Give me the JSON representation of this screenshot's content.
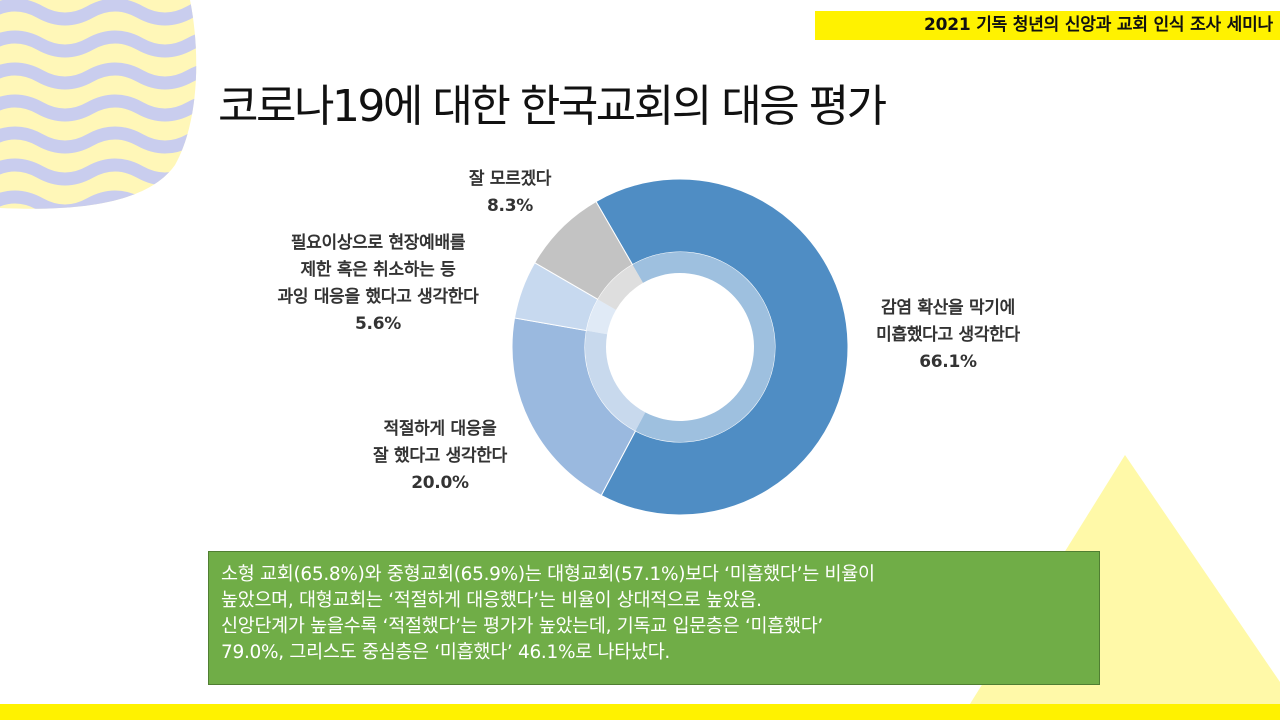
{
  "header": {
    "text": "2021 기독 청년의 신앙과 교회 인식 조사 세미나"
  },
  "title": "코로나19에 대한 한국교회의 대응 평가",
  "chart_data": {
    "type": "pie",
    "labels": [
      "감염 확산을 막기에 미흡했다고 생각한다",
      "적절하게 대응을 잘 했다고 생각한다",
      "필요이상으로 현장예배를 제한 혹은 취소하는 등 과잉 대응을 했다고 생각한다",
      "잘 모르겠다"
    ],
    "values": [
      66.1,
      20.0,
      5.6,
      8.3
    ],
    "value_labels": [
      "66.1%",
      "20.0%",
      "5.6%",
      "8.3%"
    ],
    "colors": [
      "#4f8dc4",
      "#9ab9df",
      "#c7d9ef",
      "#c3c3c3"
    ],
    "label_lines": [
      [
        "감염 확산을 막기에",
        "미흡했다고 생각한다"
      ],
      [
        "적절하게 대응을",
        "잘 했다고 생각한다"
      ],
      [
        "필요이상으로 현장예배를",
        "제한 혹은 취소하는 등",
        "과잉 대응을 했다고 생각한다"
      ],
      [
        "잘 모르겠다"
      ]
    ],
    "start_direction": "counterclockwise from top-right of vertical"
  },
  "note": {
    "lines": [
      "소형 교회(65.8%)와 중형교회(65.9%)는 대형교회(57.1%)보다 ‘미흡했다’는 비율이",
      "높았으며, 대형교회는 ‘적절하게 대응했다’는 비율이 상대적으로 높았음.",
      "신앙단계가 높을수록 ‘적절했다’는 평가가 높았는데, 기독교 입문층은 ‘미흡했다’",
      "79.0%, 그리스도 중심층은 ‘미흡했다’ 46.1%로 나타났다."
    ]
  }
}
